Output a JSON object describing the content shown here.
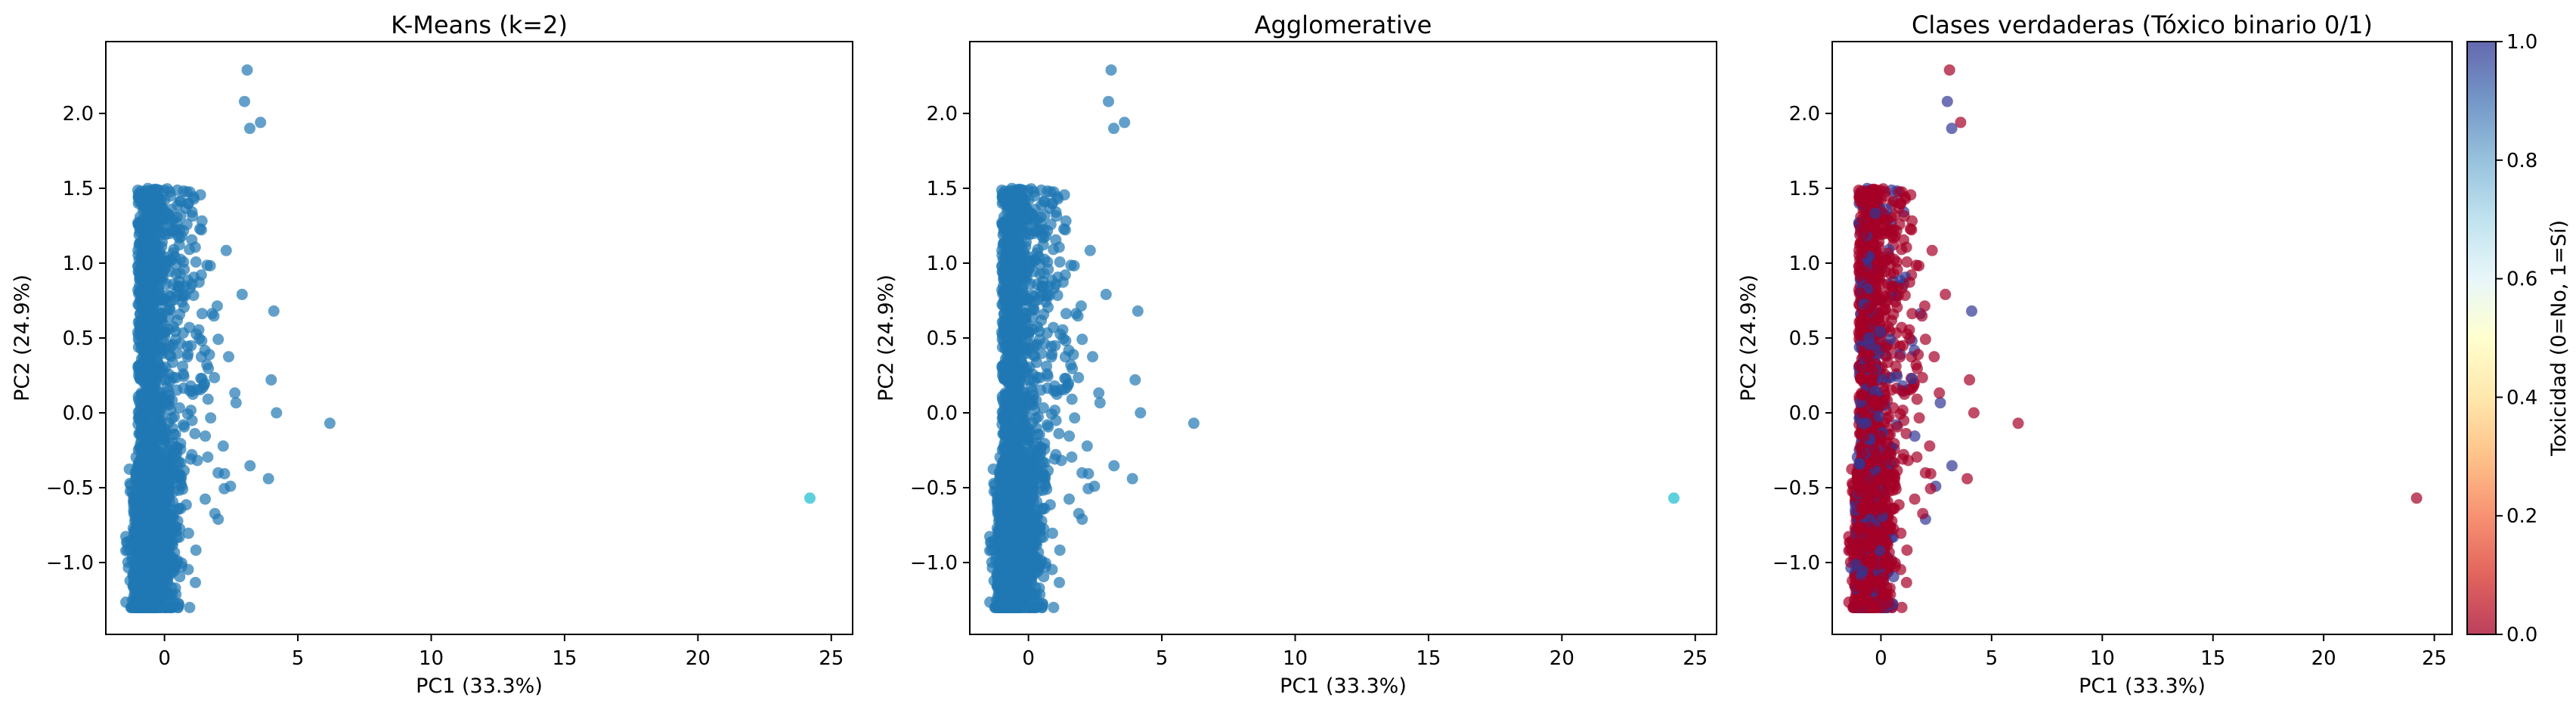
{
  "colors": {
    "tab10_blue": "#1f77b4",
    "tab10_cyan": "#17becf",
    "rdylbu_0": "#a50026",
    "rdylbu_1": "#313695"
  },
  "chart_data": [
    {
      "type": "scatter",
      "title": "K-Means (k=2)",
      "xlabel": "PC1 (33.3%)",
      "ylabel": "PC2 (24.9%)",
      "xlim": [
        -2.2,
        25.8
      ],
      "ylim": [
        -1.48,
        2.48
      ],
      "xticks": [
        0,
        5,
        10,
        15,
        20,
        25
      ],
      "yticks": [
        -1.0,
        -0.5,
        0.0,
        0.5,
        1.0,
        1.5,
        2.0
      ],
      "grid": false,
      "marker_alpha": 0.7,
      "series": [
        {
          "values": "cluster 0 (main cloud)",
          "color": "#1f77b4",
          "x_range": [
            -1.5,
            6.3
          ],
          "y_range": [
            -1.3,
            2.3
          ]
        },
        {
          "values": "cluster 1",
          "color": "#17becf",
          "points": [
            [
              24.2,
              -0.57
            ]
          ]
        }
      ],
      "outliers_cluster0": [
        [
          3.1,
          2.29
        ],
        [
          3.0,
          2.08
        ],
        [
          3.6,
          1.94
        ],
        [
          3.2,
          1.9
        ],
        [
          4.1,
          0.68
        ],
        [
          4.0,
          0.22
        ],
        [
          4.2,
          0.0
        ],
        [
          6.2,
          -0.07
        ],
        [
          3.9,
          -0.44
        ]
      ]
    },
    {
      "type": "scatter",
      "title": "Agglomerative",
      "xlabel": "PC1 (33.3%)",
      "ylabel": "PC2 (24.9%)",
      "xlim": [
        -2.2,
        25.8
      ],
      "ylim": [
        -1.48,
        2.48
      ],
      "xticks": [
        0,
        5,
        10,
        15,
        20,
        25
      ],
      "yticks": [
        -1.0,
        -0.5,
        0.0,
        0.5,
        1.0,
        1.5,
        2.0
      ],
      "grid": false,
      "marker_alpha": 0.7,
      "series": [
        {
          "values": "cluster 0 (main cloud)",
          "color": "#1f77b4",
          "x_range": [
            -1.5,
            6.3
          ],
          "y_range": [
            -1.3,
            2.3
          ]
        },
        {
          "values": "cluster 1",
          "color": "#17becf",
          "points": [
            [
              24.2,
              -0.57
            ]
          ]
        }
      ]
    },
    {
      "type": "scatter",
      "title": "Clases verdaderas (Tóxico binario 0/1)",
      "xlabel": "PC1 (33.3%)",
      "ylabel": "PC2 (24.9%)",
      "xlim": [
        -2.2,
        25.8
      ],
      "ylim": [
        -1.48,
        2.48
      ],
      "xticks": [
        0,
        5,
        10,
        15,
        20,
        25
      ],
      "yticks": [
        -1.0,
        -0.5,
        0.0,
        0.5,
        1.0,
        1.5,
        2.0
      ],
      "grid": false,
      "marker_alpha": 0.7,
      "colormap": "RdYlBu",
      "series": [
        {
          "values": "class 0",
          "color": "#a50026"
        },
        {
          "values": "class 1",
          "color": "#313695"
        }
      ],
      "colorbar": {
        "label": "Toxicidad (0=No, 1=Sí)",
        "range": [
          0.0,
          1.0
        ],
        "ticks": [
          "0.0",
          "0.2",
          "0.4",
          "0.6",
          "0.8",
          "1.0"
        ]
      }
    }
  ]
}
